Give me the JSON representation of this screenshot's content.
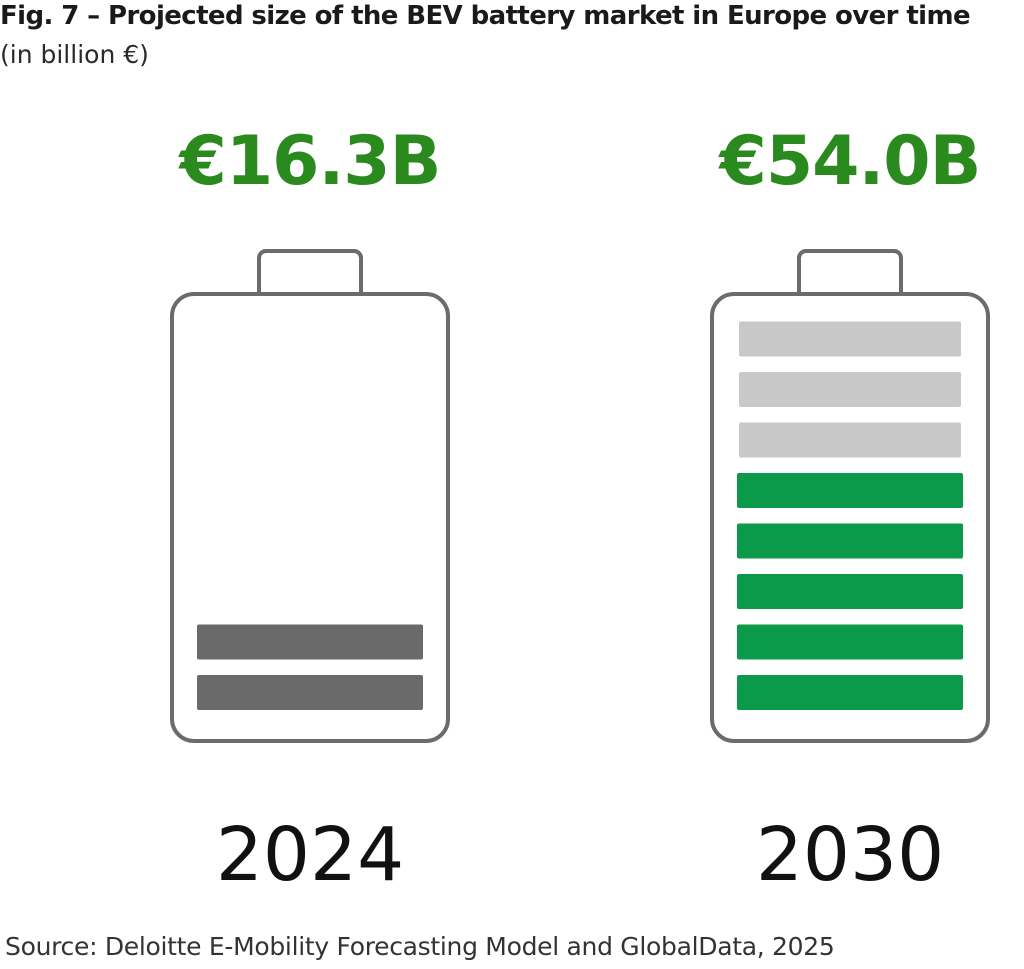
{
  "title": "Fig. 7 – Projected size of the BEV battery market in Europe over time",
  "subtitle": "(in billion €)",
  "source": "Source: Deloitte E-Mobility Forecasting Model and GlobalData, 2025",
  "colors": {
    "value_text": "#2a8a1e",
    "battery_outline": "#6b6b6b",
    "bar_dark_grey": "#6a6a6a",
    "bar_light_grey": "#c8c8c8",
    "bar_green": "#0b9a4a",
    "year_text": "#111111"
  },
  "chart_data": {
    "type": "bar",
    "categories": [
      "2024",
      "2030"
    ],
    "values": [
      16.3,
      54.0
    ],
    "value_labels": [
      "€16.3B",
      "€54.0B"
    ],
    "title": "Fig. 7 – Projected size of the BEV battery market in Europe over time",
    "subtitle": "(in billion €)",
    "xlabel": "",
    "ylabel": "",
    "batteries": [
      {
        "year": "2024",
        "value_label": "€16.3B",
        "filled_segments": 2,
        "empty_segments": 0,
        "fill_color": "#6a6a6a"
      },
      {
        "year": "2030",
        "value_label": "€54.0B",
        "filled_segments": 5,
        "empty_segments": 3,
        "fill_color": "#0b9a4a"
      }
    ]
  }
}
